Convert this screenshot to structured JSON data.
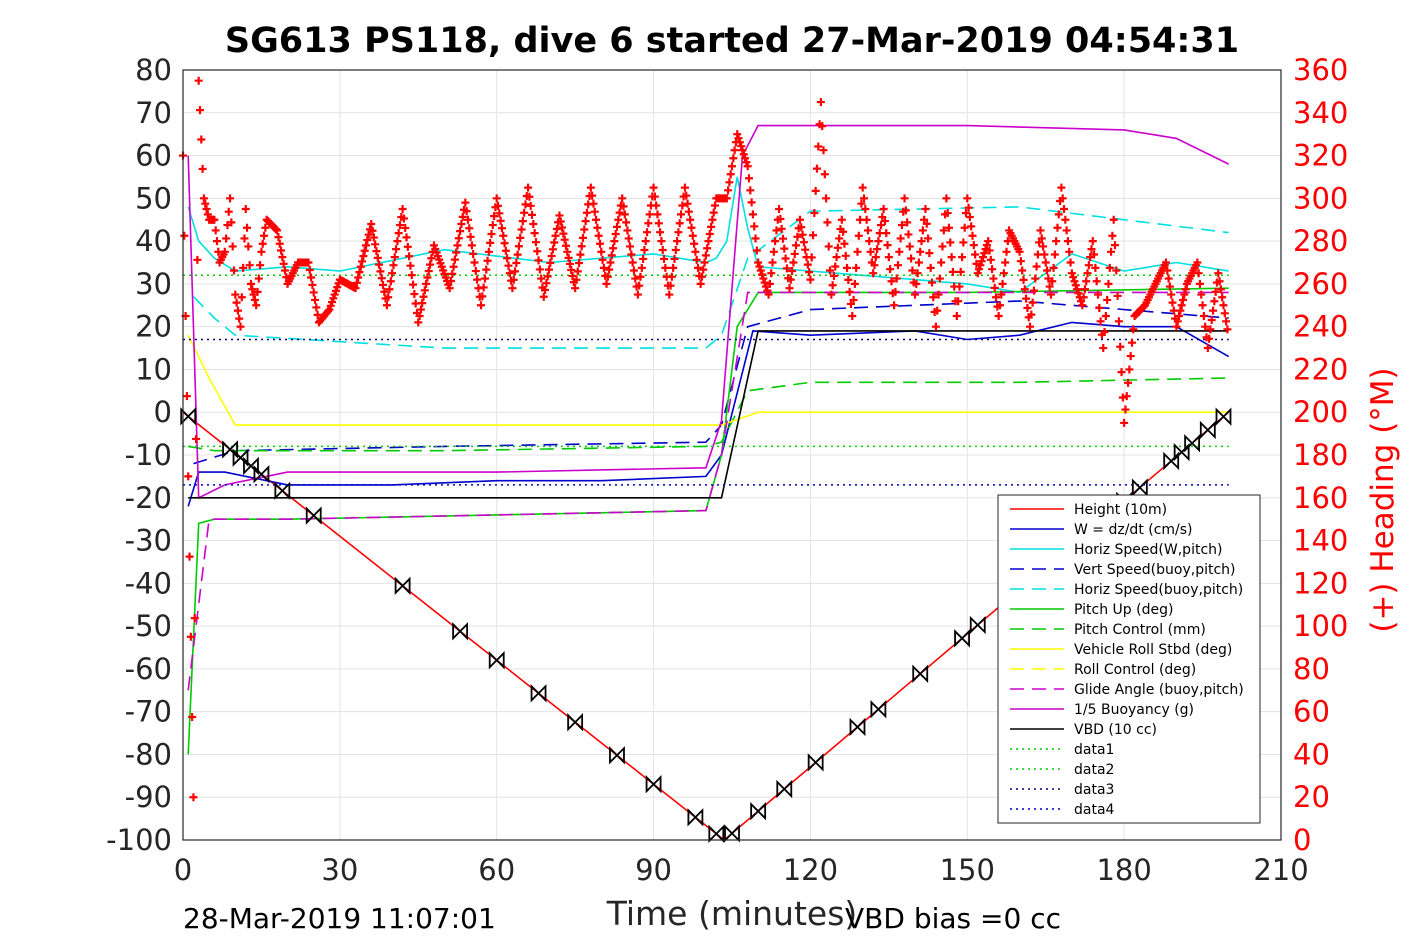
{
  "chart_data": {
    "type": "line",
    "title": "SG613 PS118, dive 6 started 27-Mar-2019 04:54:31",
    "xlabel": "Time (minutes)",
    "ylabel_right": "(+) Heading (°M)",
    "footer_left": "28-Mar-2019 11:07:01",
    "footer_right": "VBD bias =0 cc",
    "xlim": [
      0,
      210
    ],
    "ylim": [
      -100,
      80
    ],
    "ylim_right": [
      0,
      360
    ],
    "x_ticks": [
      "0",
      "30",
      "60",
      "90",
      "120",
      "150",
      "180",
      "210"
    ],
    "y_ticks": [
      "80",
      "70",
      "60",
      "50",
      "40",
      "30",
      "20",
      "10",
      "0",
      "-10",
      "-20",
      "-30",
      "-40",
      "-50",
      "-60",
      "-70",
      "-80",
      "-90",
      "-100"
    ],
    "y_right_ticks": [
      "360",
      "340",
      "320",
      "300",
      "280",
      "260",
      "240",
      "220",
      "200",
      "180",
      "160",
      "140",
      "120",
      "100",
      "80",
      "60",
      "40",
      "20",
      "0"
    ],
    "grid": true,
    "legend_position": "lower-right",
    "colors": {
      "height": "#ff0000",
      "w": "#0000cc",
      "horiz_speed_w": "#00e0e0",
      "pitch": "#00cc00",
      "roll": "#ffff00",
      "glide": "#cc00cc",
      "buoyancy": "#dd00dd",
      "vbd": "#000000",
      "heading": "#ff0000"
    },
    "legend": [
      {
        "label": "Height (10m)",
        "color": "#ff0000",
        "dash": "solid"
      },
      {
        "label": "W = dz/dt (cm/s)",
        "color": "#0000cc",
        "dash": "solid"
      },
      {
        "label": "Horiz Speed(W,pitch)",
        "color": "#00e0e0",
        "dash": "solid"
      },
      {
        "label": "Vert Speed(buoy,pitch)",
        "color": "#0000cc",
        "dash": "dashed"
      },
      {
        "label": "Horiz Speed(buoy,pitch)",
        "color": "#00e0e0",
        "dash": "dashed"
      },
      {
        "label": "Pitch Up (deg)",
        "color": "#00cc00",
        "dash": "solid"
      },
      {
        "label": "Pitch Control (mm)",
        "color": "#00cc00",
        "dash": "dashed"
      },
      {
        "label": "Vehicle Roll Stbd (deg)",
        "color": "#ffff00",
        "dash": "solid"
      },
      {
        "label": "Roll Control (deg)",
        "color": "#ffff00",
        "dash": "dashed"
      },
      {
        "label": "Glide Angle (buoy,pitch)",
        "color": "#cc00cc",
        "dash": "dashed"
      },
      {
        "label": "1/5 Buoyancy (g)",
        "color": "#cc00cc",
        "dash": "solid"
      },
      {
        "label": "VBD (10 cc)",
        "color": "#000000",
        "dash": "solid"
      },
      {
        "label": "data1",
        "color": "#00cc00",
        "dash": "dotted"
      },
      {
        "label": "data2",
        "color": "#00cc00",
        "dash": "dotted"
      },
      {
        "label": "data3",
        "color": "#000080",
        "dash": "dotted"
      },
      {
        "label": "data4",
        "color": "#0000cc",
        "dash": "dotted"
      }
    ],
    "series": [
      {
        "name": "Height (10m)",
        "x": [
          0,
          103.5,
          200
        ],
        "y": [
          0,
          -100,
          0
        ]
      },
      {
        "name": "W = dz/dt (cm/s)",
        "x": [
          1,
          3,
          8,
          20,
          40,
          60,
          80,
          100,
          103,
          109,
          120,
          140,
          150,
          160,
          170,
          180,
          190,
          200
        ],
        "y": [
          -22,
          -14,
          -14,
          -17,
          -17,
          -16,
          -16,
          -15,
          -10,
          19,
          18,
          19,
          17,
          18,
          21,
          20,
          20,
          13
        ]
      },
      {
        "name": "Horiz Speed(W,pitch)",
        "x": [
          1,
          3,
          6,
          10,
          20,
          30,
          50,
          70,
          90,
          100,
          102,
          104,
          106,
          108,
          110,
          130,
          150,
          160,
          170,
          180,
          190,
          200
        ],
        "y": [
          48,
          40,
          36,
          33,
          34,
          33,
          38,
          35,
          37,
          35,
          36,
          40,
          55,
          43,
          34,
          32,
          30,
          28,
          37,
          33,
          35,
          33
        ]
      },
      {
        "name": "Vert Speed(buoy,pitch)",
        "x": [
          2,
          10,
          50,
          100,
          103,
          108,
          120,
          160,
          200
        ],
        "y": [
          -12,
          -9,
          -8,
          -7,
          -3,
          20,
          24,
          26,
          22
        ]
      },
      {
        "name": "Horiz Speed(buoy,pitch)",
        "x": [
          2,
          6,
          10,
          50,
          100,
          103,
          108,
          120,
          160,
          200
        ],
        "y": [
          27,
          22,
          18,
          15,
          15,
          18,
          36,
          47,
          48,
          42
        ]
      },
      {
        "name": "Pitch Up (deg)",
        "x": [
          1,
          3,
          6,
          20,
          60,
          100,
          103,
          106,
          110,
          150,
          200
        ],
        "y": [
          -80,
          -26,
          -25,
          -25,
          -24,
          -23,
          -10,
          20,
          28,
          28,
          29
        ]
      },
      {
        "name": "Pitch Control (mm)",
        "x": [
          1,
          6,
          50,
          100,
          103,
          108,
          120,
          160,
          200
        ],
        "y": [
          -8,
          -9,
          -9,
          -8,
          -7,
          5,
          7,
          7,
          8
        ]
      },
      {
        "name": "Vehicle Roll Stbd (deg)",
        "x": [
          1,
          5,
          10,
          40,
          100,
          103,
          110,
          150,
          200
        ],
        "y": [
          18,
          8,
          -3,
          -3,
          -3,
          -3,
          0,
          0,
          0
        ]
      },
      {
        "name": "Glide Angle (buoy,pitch)",
        "x": [
          1,
          5,
          20,
          60,
          100,
          103,
          108,
          150,
          200
        ],
        "y": [
          -65,
          -25,
          -25,
          -24,
          -23,
          -10,
          28,
          28,
          28
        ]
      },
      {
        "name": "1/5 Buoyancy (g)",
        "x": [
          1,
          3,
          8,
          20,
          60,
          100,
          103,
          107,
          110,
          150,
          180,
          190,
          200
        ],
        "y": [
          60,
          -20,
          -17,
          -14,
          -14,
          -13,
          -2,
          60,
          67,
          67,
          66,
          64,
          58
        ]
      },
      {
        "name": "VBD (10 cc)",
        "x": [
          1,
          5,
          10,
          50,
          100,
          103,
          110,
          150,
          200
        ],
        "y": [
          -20,
          -20,
          -20,
          -20,
          -20,
          -20,
          19,
          19,
          19
        ]
      },
      {
        "name": "data1",
        "x": [
          0,
          200
        ],
        "y": [
          32,
          32
        ]
      },
      {
        "name": "data2",
        "x": [
          0,
          200
        ],
        "y": [
          -8,
          -8
        ]
      },
      {
        "name": "data3",
        "x": [
          0,
          200
        ],
        "y": [
          17,
          17
        ]
      },
      {
        "name": "data4",
        "x": [
          0,
          200
        ],
        "y": [
          -17,
          -17
        ]
      }
    ],
    "heading_right_axis": {
      "name": "(+) Heading (°M)",
      "x": [
        0,
        2,
        3,
        4,
        5,
        6,
        7,
        8,
        9,
        10,
        11,
        12,
        13,
        14,
        15,
        16,
        18,
        20,
        22,
        24,
        26,
        28,
        30,
        33,
        36,
        39,
        42,
        45,
        48,
        51,
        54,
        57,
        60,
        63,
        66,
        69,
        72,
        75,
        78,
        81,
        84,
        87,
        90,
        93,
        96,
        99,
        102,
        104,
        106,
        108,
        110,
        112,
        114,
        116,
        118,
        120,
        122,
        124,
        126,
        128,
        130,
        132,
        134,
        136,
        138,
        140,
        142,
        144,
        146,
        148,
        150,
        152,
        154,
        156,
        158,
        160,
        162,
        164,
        166,
        168,
        170,
        172,
        174,
        176,
        178,
        180,
        182,
        184,
        186,
        188,
        190,
        192,
        194,
        196,
        198,
        200
      ],
      "y": [
        320,
        20,
        355,
        300,
        290,
        290,
        270,
        275,
        300,
        255,
        240,
        295,
        260,
        250,
        275,
        290,
        285,
        260,
        270,
        270,
        242,
        248,
        262,
        258,
        288,
        250,
        295,
        242,
        278,
        258,
        298,
        250,
        300,
        258,
        305,
        254,
        292,
        258,
        305,
        260,
        300,
        255,
        305,
        255,
        305,
        260,
        300,
        300,
        330,
        315,
        270,
        255,
        295,
        258,
        290,
        262,
        345,
        255,
        290,
        245,
        305,
        265,
        295,
        250,
        300,
        255,
        295,
        240,
        300,
        245,
        300,
        265,
        280,
        245,
        285,
        275,
        240,
        285,
        255,
        305,
        265,
        250,
        280,
        230,
        290,
        195,
        245,
        250,
        260,
        270,
        240,
        260,
        270,
        230,
        265,
        235
      ]
    }
  }
}
